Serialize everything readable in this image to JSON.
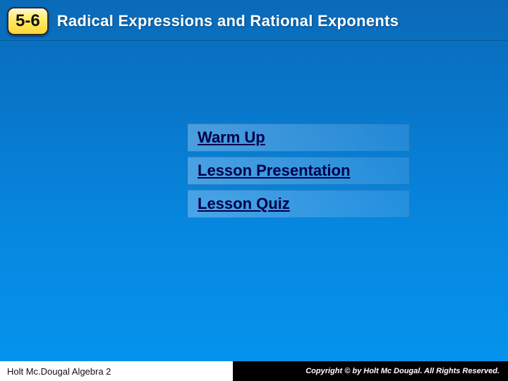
{
  "header": {
    "badge": "5-6",
    "title": "Radical Expressions and Rational Exponents"
  },
  "links": [
    {
      "label": "Warm Up"
    },
    {
      "label": "Lesson Presentation"
    },
    {
      "label": "Lesson Quiz"
    }
  ],
  "footer": {
    "left": "Holt Mc.Dougal Algebra 2",
    "right": "Copyright © by Holt Mc Dougal. All Rights Reserved."
  },
  "colors": {
    "bg_top": "#0a6ab8",
    "bg_bottom": "#0595ef",
    "link_text": "#00004a",
    "badge_border": "#2a2a2a"
  }
}
